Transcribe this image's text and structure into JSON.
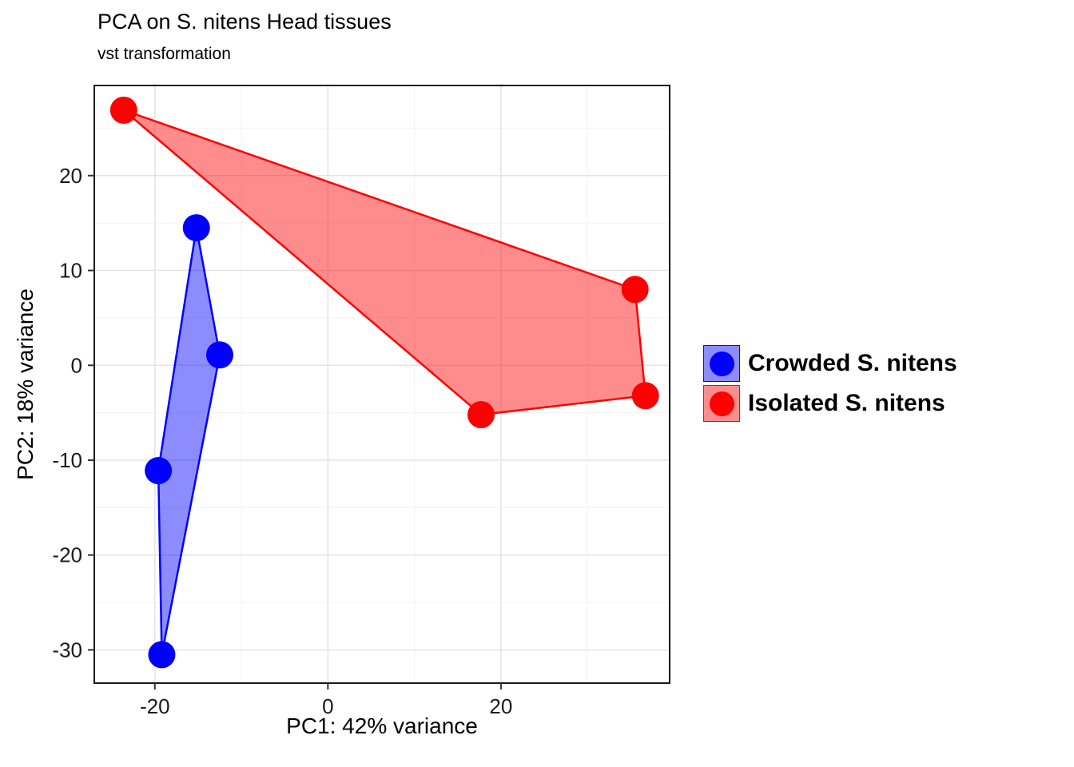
{
  "chart_data": {
    "type": "scatter",
    "title": "PCA on S. nitens Head tissues",
    "subtitle": "vst transformation",
    "xlabel": "PC1: 42% variance",
    "ylabel": "PC2: 18% variance",
    "xlim": [
      -27,
      39.5
    ],
    "ylim": [
      -33.5,
      29.5
    ],
    "xticks": [
      -20,
      0,
      20
    ],
    "yticks": [
      -30,
      -20,
      -10,
      0,
      10,
      20
    ],
    "xticks_minor": [
      -10,
      10,
      30
    ],
    "yticks_minor": [
      -25,
      -15,
      -5,
      5,
      15,
      25
    ],
    "grid": true,
    "legend_position": "right",
    "point_radius": 17,
    "hull_opacity": 0.45,
    "series": [
      {
        "name": "Crowded S. nitens",
        "color": "#0000ff",
        "points": [
          [
            -15.2,
            14.5
          ],
          [
            -12.5,
            1.1
          ],
          [
            -19.6,
            -11.1
          ],
          [
            -19.2,
            -30.5
          ]
        ],
        "hull": [
          [
            -15.2,
            14.5
          ],
          [
            -12.5,
            1.1
          ],
          [
            -19.2,
            -30.5
          ],
          [
            -19.6,
            -11.1
          ]
        ]
      },
      {
        "name": "Isolated S. nitens",
        "color": "#ff0000",
        "points": [
          [
            -23.6,
            26.9
          ],
          [
            35.5,
            8.0
          ],
          [
            36.7,
            -3.2
          ],
          [
            17.7,
            -5.2
          ]
        ],
        "hull": [
          [
            -23.6,
            26.9
          ],
          [
            35.5,
            8.0
          ],
          [
            36.7,
            -3.2
          ],
          [
            17.7,
            -5.2
          ]
        ]
      }
    ]
  }
}
